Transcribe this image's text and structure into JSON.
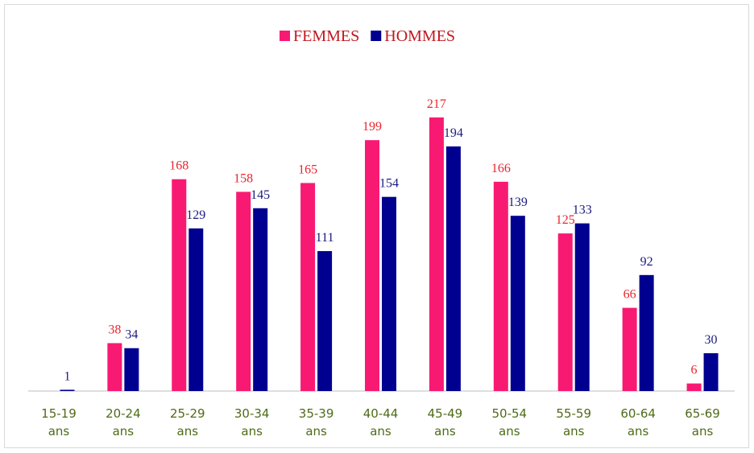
{
  "chart_data": {
    "type": "bar",
    "categories": [
      "15-19 ans",
      "20-24 ans",
      "25-29 ans",
      "30-34 ans",
      "35-39 ans",
      "40-44 ans",
      "45-49 ans",
      "50-54 ans",
      "55-59 ans",
      "60-64 ans",
      "65-69 ans"
    ],
    "series": [
      {
        "name": "FEMMES",
        "color": "#f81a72",
        "label_color": "#e8262e",
        "values": [
          null,
          38,
          168,
          158,
          165,
          199,
          217,
          166,
          125,
          66,
          6
        ]
      },
      {
        "name": "HOMMES",
        "color": "#000090",
        "label_color": "#1a1a80",
        "values": [
          1,
          34,
          129,
          145,
          111,
          154,
          194,
          139,
          133,
          92,
          30
        ]
      }
    ]
  }
}
